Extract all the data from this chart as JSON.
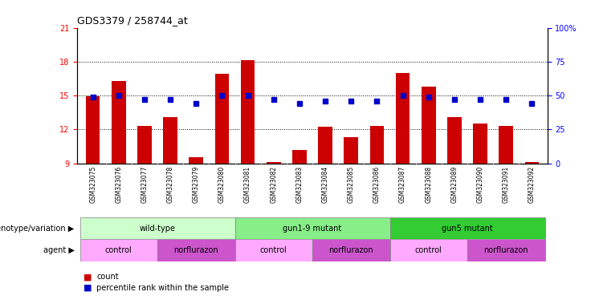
{
  "title": "GDS3379 / 258744_at",
  "samples": [
    "GSM323075",
    "GSM323076",
    "GSM323077",
    "GSM323078",
    "GSM323079",
    "GSM323080",
    "GSM323081",
    "GSM323082",
    "GSM323083",
    "GSM323084",
    "GSM323085",
    "GSM323086",
    "GSM323087",
    "GSM323088",
    "GSM323089",
    "GSM323090",
    "GSM323091",
    "GSM323092"
  ],
  "counts": [
    14.9,
    16.3,
    12.3,
    13.1,
    9.5,
    16.9,
    18.1,
    9.1,
    10.2,
    12.2,
    11.3,
    12.3,
    17.0,
    15.8,
    13.1,
    12.5,
    12.3,
    9.1
  ],
  "percentile_ranks": [
    49,
    50,
    47,
    47,
    44,
    50,
    50,
    47,
    44,
    46,
    46,
    46,
    50,
    49,
    47,
    47,
    47,
    44
  ],
  "ylim_left": [
    9,
    21
  ],
  "ylim_right": [
    0,
    100
  ],
  "yticks_left": [
    9,
    12,
    15,
    18,
    21
  ],
  "yticks_right": [
    0,
    25,
    50,
    75,
    100
  ],
  "bar_color": "#cc0000",
  "dot_color": "#0000cc",
  "genotype_groups": [
    {
      "label": "wild-type",
      "start": 0,
      "end": 5,
      "color": "#ccffcc"
    },
    {
      "label": "gun1-9 mutant",
      "start": 6,
      "end": 11,
      "color": "#88ee88"
    },
    {
      "label": "gun5 mutant",
      "start": 12,
      "end": 17,
      "color": "#33cc33"
    }
  ],
  "agent_groups": [
    {
      "label": "control",
      "start": 0,
      "end": 2,
      "color": "#ffaaff"
    },
    {
      "label": "norflurazon",
      "start": 3,
      "end": 5,
      "color": "#cc55cc"
    },
    {
      "label": "control",
      "start": 6,
      "end": 8,
      "color": "#ffaaff"
    },
    {
      "label": "norflurazon",
      "start": 9,
      "end": 11,
      "color": "#cc55cc"
    },
    {
      "label": "control",
      "start": 12,
      "end": 14,
      "color": "#ffaaff"
    },
    {
      "label": "norflurazon",
      "start": 15,
      "end": 17,
      "color": "#cc55cc"
    }
  ],
  "legend_count_color": "#cc0000",
  "legend_dot_color": "#0000cc",
  "label_genotype": "genotype/variation",
  "label_agent": "agent"
}
